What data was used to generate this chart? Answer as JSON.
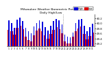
{
  "title": "Milwaukee Weather Barometric Pressure",
  "subtitle": "Daily High/Low",
  "high_values": [
    30.12,
    30.02,
    29.82,
    30.15,
    30.22,
    30.08,
    29.82,
    29.68,
    29.62,
    29.88,
    30.02,
    30.12,
    30.05,
    29.85,
    29.72,
    29.9,
    30.08,
    30.18,
    30.12,
    29.95,
    29.55,
    29.48,
    29.45,
    29.65,
    30.02,
    30.15,
    30.18,
    29.9,
    29.68,
    29.85,
    29.98
  ],
  "low_values": [
    29.75,
    29.7,
    29.55,
    29.82,
    29.9,
    29.78,
    29.48,
    29.35,
    29.3,
    29.52,
    29.72,
    29.8,
    29.7,
    29.52,
    29.4,
    29.58,
    29.75,
    29.85,
    29.78,
    29.6,
    29.28,
    29.22,
    29.2,
    29.48,
    29.68,
    29.8,
    29.88,
    29.58,
    29.38,
    29.5,
    29.65
  ],
  "labels": [
    "1",
    "2",
    "3",
    "4",
    "5",
    "6",
    "7",
    "8",
    "9",
    "10",
    "11",
    "12",
    "13",
    "14",
    "15",
    "16",
    "17",
    "18",
    "19",
    "20",
    "21",
    "22",
    "23",
    "24",
    "25",
    "26",
    "27",
    "28",
    "29",
    "30",
    "31"
  ],
  "high_color": "#0000dd",
  "low_color": "#dd0000",
  "background_color": "#ffffff",
  "ylim_min": 29.1,
  "ylim_max": 30.35,
  "yticks": [
    29.2,
    29.4,
    29.6,
    29.8,
    30.0,
    30.2
  ],
  "ytick_labels": [
    "29.2",
    "29.4",
    "29.6",
    "29.8",
    "30.0",
    "30.2"
  ],
  "dotted_line_x": 19.5,
  "bar_width": 0.38
}
